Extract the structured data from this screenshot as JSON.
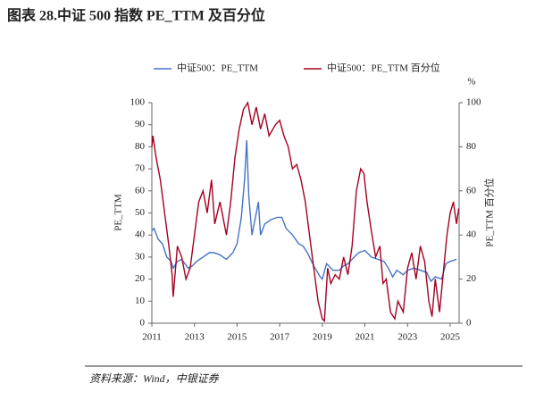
{
  "chart_data": {
    "type": "line",
    "title": "图表 28.中证 500 指数 PE_TTM 及百分位",
    "source": "资料来源：Wind，中银证券",
    "y_label": "PE_TTM",
    "y2_label": "PE_TTM 百分位",
    "y2_unit": "%",
    "xlim": [
      2011,
      2025.42
    ],
    "xticks": [
      2011,
      2013,
      2015,
      2017,
      2019,
      2021,
      2023,
      2025
    ],
    "ylim": [
      0,
      100
    ],
    "yticks": [
      0,
      10,
      20,
      30,
      40,
      50,
      60,
      70,
      80,
      90,
      100
    ],
    "y2lim": [
      0,
      100
    ],
    "y2ticks": [
      0,
      20,
      40,
      60,
      80,
      100
    ],
    "grid": false,
    "series": [
      {
        "name": "中证500：PE_TTM",
        "color": "#4472c4",
        "x": [
          2011.0,
          2011.1,
          2011.3,
          2011.5,
          2011.7,
          2011.9,
          2012.0,
          2012.2,
          2012.4,
          2012.7,
          2012.9,
          2013.1,
          2013.4,
          2013.7,
          2013.9,
          2014.2,
          2014.5,
          2014.8,
          2015.0,
          2015.2,
          2015.35,
          2015.45,
          2015.55,
          2015.7,
          2015.9,
          2016.0,
          2016.1,
          2016.3,
          2016.6,
          2016.9,
          2017.1,
          2017.3,
          2017.6,
          2017.9,
          2018.1,
          2018.3,
          2018.6,
          2018.9,
          2019.0,
          2019.2,
          2019.5,
          2019.8,
          2020.0,
          2020.2,
          2020.5,
          2020.7,
          2021.0,
          2021.3,
          2021.6,
          2021.9,
          2022.1,
          2022.3,
          2022.5,
          2022.8,
          2023.0,
          2023.3,
          2023.6,
          2023.9,
          2024.1,
          2024.3,
          2024.6,
          2024.8,
          2025.0,
          2025.3
        ],
        "values": [
          42,
          43,
          38,
          36,
          30,
          28,
          25,
          28,
          29,
          25,
          26,
          28,
          30,
          32,
          32,
          31,
          29,
          32,
          36,
          48,
          65,
          83,
          58,
          40,
          50,
          55,
          40,
          45,
          47,
          48,
          48,
          43,
          40,
          36,
          35,
          32,
          26,
          21,
          20,
          27,
          24,
          24,
          26,
          27,
          30,
          32,
          33,
          30,
          29,
          28,
          25,
          21,
          24,
          22,
          24,
          25,
          24,
          23,
          19,
          21,
          20,
          27,
          28,
          29
        ]
      },
      {
        "name": "中证500：PE_TTM 百分位",
        "color": "#a50021",
        "axis": "y2",
        "x": [
          2011.0,
          2011.05,
          2011.2,
          2011.4,
          2011.6,
          2011.8,
          2011.95,
          2012.0,
          2012.2,
          2012.4,
          2012.6,
          2012.8,
          2013.0,
          2013.2,
          2013.4,
          2013.6,
          2013.8,
          2013.95,
          2014.2,
          2014.5,
          2014.7,
          2014.9,
          2015.1,
          2015.3,
          2015.5,
          2015.7,
          2015.9,
          2016.1,
          2016.3,
          2016.5,
          2016.8,
          2017.0,
          2017.2,
          2017.4,
          2017.6,
          2017.8,
          2018.0,
          2018.2,
          2018.4,
          2018.6,
          2018.8,
          2019.0,
          2019.1,
          2019.25,
          2019.4,
          2019.6,
          2019.8,
          2020.0,
          2020.2,
          2020.4,
          2020.6,
          2020.8,
          2020.95,
          2021.1,
          2021.3,
          2021.5,
          2021.7,
          2021.85,
          2022.0,
          2022.2,
          2022.4,
          2022.55,
          2022.8,
          2023.0,
          2023.2,
          2023.4,
          2023.6,
          2023.8,
          2024.0,
          2024.15,
          2024.3,
          2024.5,
          2024.7,
          2024.85,
          2025.0,
          2025.15,
          2025.3,
          2025.4
        ],
        "values": [
          80,
          85,
          75,
          65,
          50,
          35,
          22,
          12,
          35,
          30,
          20,
          25,
          40,
          55,
          60,
          50,
          65,
          45,
          55,
          40,
          55,
          75,
          88,
          97,
          100,
          90,
          98,
          88,
          95,
          85,
          90,
          92,
          85,
          80,
          70,
          72,
          65,
          55,
          40,
          25,
          10,
          2,
          1,
          25,
          18,
          22,
          20,
          30,
          22,
          35,
          60,
          70,
          68,
          55,
          42,
          30,
          35,
          18,
          20,
          5,
          2,
          10,
          5,
          25,
          32,
          20,
          35,
          28,
          10,
          3,
          20,
          5,
          25,
          40,
          50,
          55,
          45,
          52
        ]
      }
    ]
  }
}
